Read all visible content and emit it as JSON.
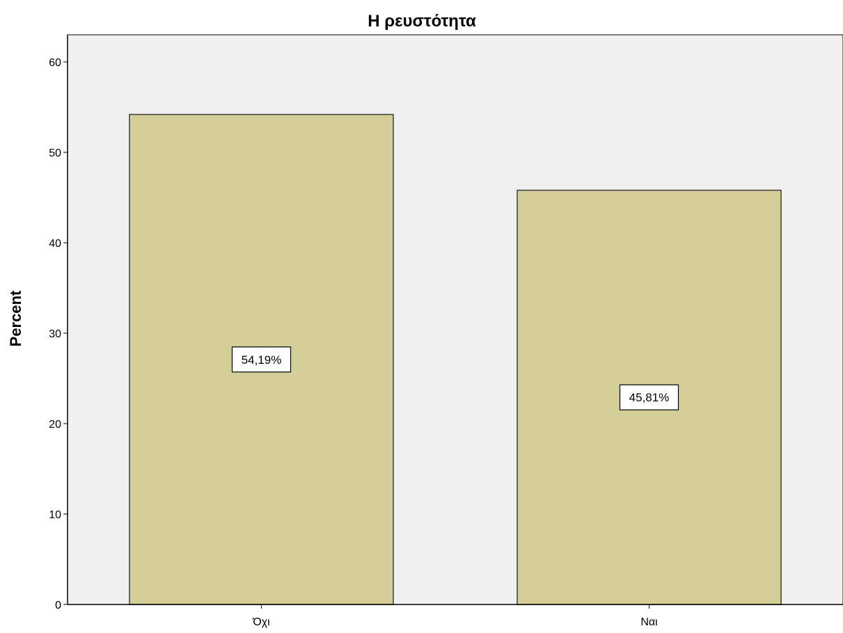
{
  "chart_data": {
    "type": "bar",
    "title": "Η ρευστότητα",
    "xlabel": "",
    "ylabel": "Percent",
    "categories": [
      "Όχι",
      "Ναι"
    ],
    "values": [
      54.19,
      45.81
    ],
    "data_labels": [
      "54,19%",
      "45,81%"
    ],
    "yticks": [
      0,
      10,
      20,
      30,
      40,
      50,
      60
    ],
    "ylim": [
      0,
      63
    ],
    "grid": false,
    "legend": "none",
    "colors": {
      "plot_background": "#f0f0f0",
      "bar_fill": "#d3ce97",
      "bar_stroke": "#3c3c3c",
      "axis": "#000000",
      "label_box_fill": "#ffffff"
    }
  }
}
